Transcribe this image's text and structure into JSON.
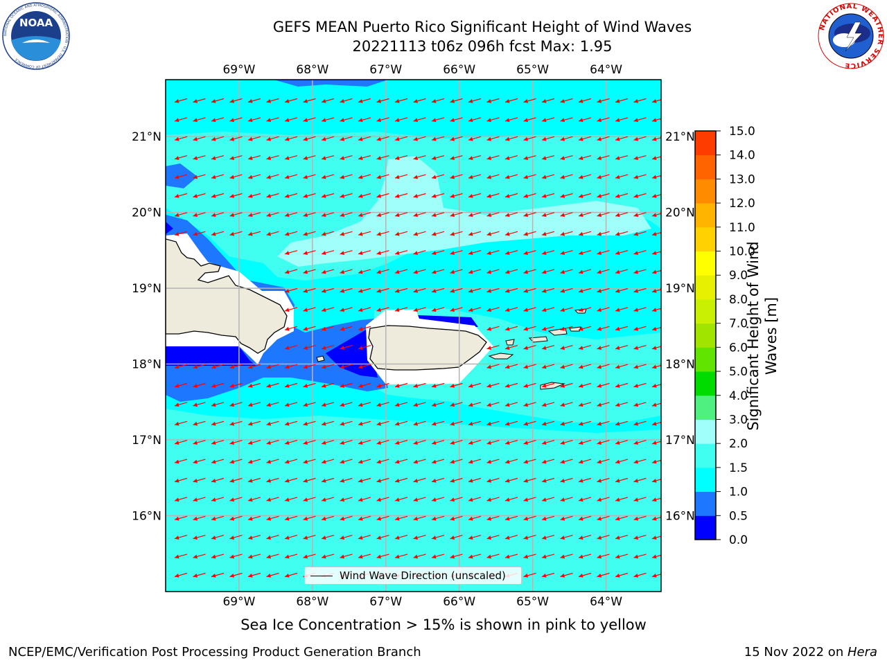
{
  "header": {
    "title_line1": "GEFS MEAN Puerto Rico Significant Height of Wind Waves",
    "title_line2": "20221113 t06z 096h fcst   Max: 1.95"
  },
  "logos": {
    "left": "noaa-logo",
    "right": "national-weather-service-logo",
    "left_text": "NOAA",
    "left_ring_text": "NATIONAL OCEANIC AND ATMOSPHERIC ADMINISTRATION · U.S. DEPARTMENT OF COMMERCE",
    "right_ring_text": "NATIONAL WEATHER SERVICE"
  },
  "map": {
    "longitude_ticks": [
      "69°W",
      "68°W",
      "67°W",
      "66°W",
      "65°W",
      "64°W"
    ],
    "latitude_ticks": [
      "21°N",
      "20°N",
      "19°N",
      "18°N",
      "17°N",
      "16°N"
    ],
    "lon_range": [
      -70.0,
      -63.25
    ],
    "lat_range": [
      15.0,
      21.75
    ],
    "gridlines": true,
    "arrow_direction_toward": "west-southwest",
    "arrow_color": "#ff0000",
    "land_color": "#eeebdc",
    "legend_label": "Wind Wave Direction (unscaled)"
  },
  "colorbar": {
    "ticks": [
      "0.0",
      "0.5",
      "1.0",
      "1.5",
      "2.0",
      "3.0",
      "4.0",
      "5.0",
      "6.0",
      "7.0",
      "8.0",
      "9.0",
      "10.0",
      "11.0",
      "12.0",
      "13.0",
      "14.0",
      "15.0"
    ],
    "colors": [
      "#0000ff",
      "#1e78ff",
      "#00ffff",
      "#40fff0",
      "#a0fff8",
      "#50f080",
      "#00dc00",
      "#60e400",
      "#a0e400",
      "#c8f000",
      "#e6f000",
      "#ffff00",
      "#ffd200",
      "#ffb400",
      "#ff8c00",
      "#ff6400",
      "#ff3c00",
      "#ff0000"
    ],
    "label": "Significant Height of Wind Waves [m]"
  },
  "notes": {
    "sea_ice": "Sea Ice Concentration > 15% is shown in pink to yellow"
  },
  "footer": {
    "left": "NCEP/EMC/Verification Post Processing Product Generation Branch",
    "date": "15 Nov 2022 on ",
    "machine": "Hera"
  }
}
